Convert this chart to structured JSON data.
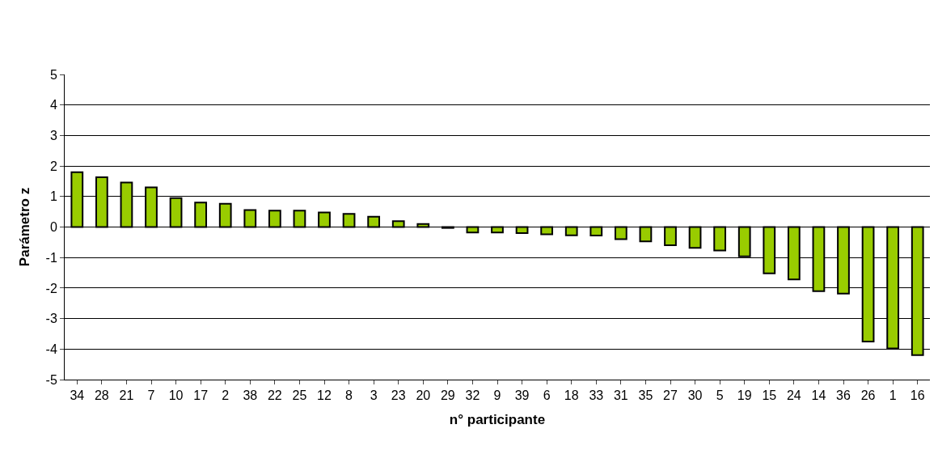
{
  "chart_data": {
    "type": "bar",
    "xlabel": "n° participante",
    "ylabel": "Parámetro z",
    "categories": [
      "34",
      "28",
      "21",
      "7",
      "10",
      "17",
      "2",
      "38",
      "22",
      "25",
      "12",
      "8",
      "3",
      "23",
      "20",
      "29",
      "32",
      "9",
      "39",
      "6",
      "18",
      "33",
      "31",
      "35",
      "27",
      "30",
      "5",
      "19",
      "15",
      "24",
      "14",
      "36",
      "26",
      "1",
      "16"
    ],
    "values": [
      1.8,
      1.63,
      1.46,
      1.3,
      0.95,
      0.8,
      0.76,
      0.56,
      0.54,
      0.54,
      0.48,
      0.43,
      0.34,
      0.19,
      0.1,
      -0.03,
      -0.18,
      -0.18,
      -0.2,
      -0.24,
      -0.27,
      -0.28,
      -0.4,
      -0.47,
      -0.6,
      -0.68,
      -0.77,
      -0.96,
      -1.52,
      -1.72,
      -2.1,
      -2.18,
      -3.75,
      -3.98,
      -4.2
    ],
    "color": "#99cc00",
    "ylim": [
      -5,
      5
    ],
    "yticks": [
      -5,
      -4,
      -3,
      -2,
      -1,
      0,
      1,
      2,
      3,
      4,
      5
    ],
    "grid": "y"
  }
}
